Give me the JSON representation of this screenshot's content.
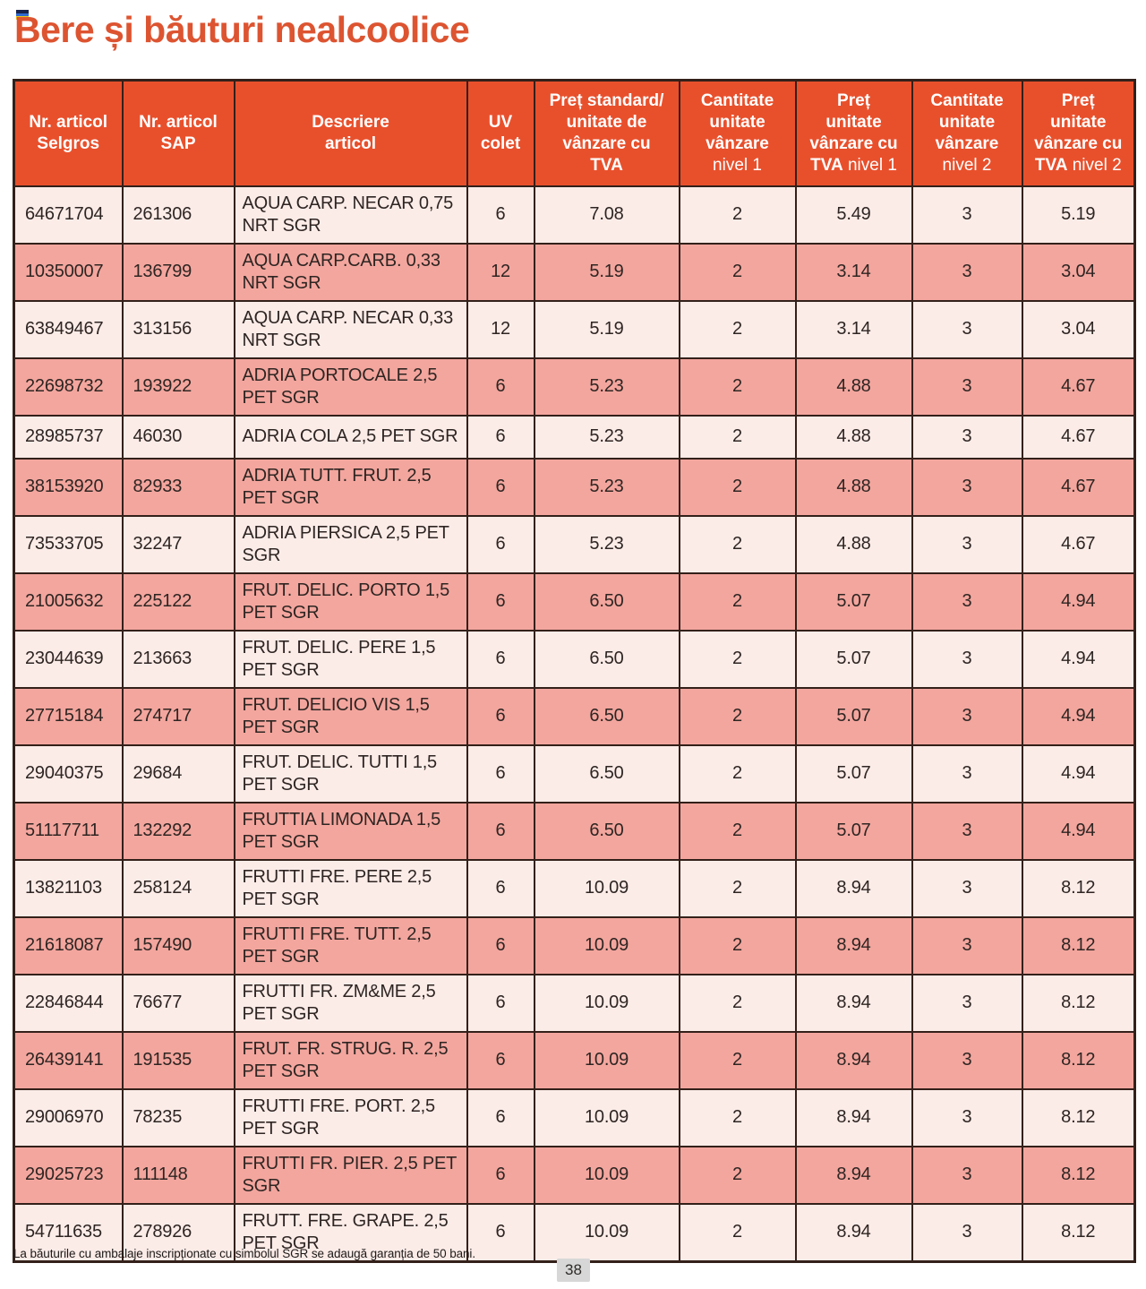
{
  "page": {
    "title": "Bere și băuturi nealcoolice",
    "page_number": "38",
    "footer_note": "La băuturile cu ambalaje inscripționate cu simbolul SGR se adaugă garanția de 50 bani."
  },
  "colors": {
    "accent_orange": "#e8502c",
    "title_orange": "#dd5431",
    "row_light": "#fbece8",
    "row_dark": "#f3a69e",
    "border": "#33201a",
    "page_badge_bg": "#d7d7d7"
  },
  "icons": {
    "flag_icon": "small tricolor flag (navy/blue/yellow stripes)"
  },
  "table": {
    "headers": [
      {
        "bold": "Nr. articol\nSelgros",
        "regular": ""
      },
      {
        "bold": "Nr. articol\nSAP",
        "regular": ""
      },
      {
        "bold": "Descriere\narticol",
        "regular": ""
      },
      {
        "bold": "UV\ncolet",
        "regular": ""
      },
      {
        "bold": "Preț standard/\nunitate de\nvânzare cu\nTVA",
        "regular": ""
      },
      {
        "bold": "Cantitate\nunitate\nvânzare",
        "regular": "\nnivel 1"
      },
      {
        "bold": "Preț\nunitate\nvânzare cu\nTVA",
        "regular": " nivel 1"
      },
      {
        "bold": "Cantitate\nunitate\nvânzare",
        "regular": "\nnivel 2"
      },
      {
        "bold": "Preț\nunitate\nvânzare cu\nTVA",
        "regular": " nivel 2"
      }
    ],
    "rows": [
      [
        "64671704",
        "261306",
        "AQUA CARP. NECAR 0,75 NRT SGR",
        "6",
        "7.08",
        "2",
        "5.49",
        "3",
        "5.19"
      ],
      [
        "10350007",
        "136799",
        "AQUA CARP.CARB. 0,33 NRT SGR",
        "12",
        "5.19",
        "2",
        "3.14",
        "3",
        "3.04"
      ],
      [
        "63849467",
        "313156",
        "AQUA CARP. NECAR 0,33 NRT SGR",
        "12",
        "5.19",
        "2",
        "3.14",
        "3",
        "3.04"
      ],
      [
        "22698732",
        "193922",
        "ADRIA PORTOCALE 2,5 PET SGR",
        "6",
        "5.23",
        "2",
        "4.88",
        "3",
        "4.67"
      ],
      [
        "28985737",
        "46030",
        "ADRIA COLA 2,5 PET SGR",
        "6",
        "5.23",
        "2",
        "4.88",
        "3",
        "4.67"
      ],
      [
        "38153920",
        "82933",
        "ADRIA TUTT. FRUT. 2,5 PET SGR",
        "6",
        "5.23",
        "2",
        "4.88",
        "3",
        "4.67"
      ],
      [
        "73533705",
        "32247",
        "ADRIA PIERSICA 2,5 PET SGR",
        "6",
        "5.23",
        "2",
        "4.88",
        "3",
        "4.67"
      ],
      [
        "21005632",
        "225122",
        "FRUT. DELIC. PORTO 1,5 PET SGR",
        "6",
        "6.50",
        "2",
        "5.07",
        "3",
        "4.94"
      ],
      [
        "23044639",
        "213663",
        "FRUT. DELIC. PERE 1,5 PET SGR",
        "6",
        "6.50",
        "2",
        "5.07",
        "3",
        "4.94"
      ],
      [
        "27715184",
        "274717",
        "FRUT. DELICIO VIS 1,5 PET SGR",
        "6",
        "6.50",
        "2",
        "5.07",
        "3",
        "4.94"
      ],
      [
        "29040375",
        "29684",
        "FRUT. DELIC. TUTTI 1,5 PET SGR",
        "6",
        "6.50",
        "2",
        "5.07",
        "3",
        "4.94"
      ],
      [
        "51117711",
        "132292",
        "FRUTTIA LIMONADA 1,5 PET SGR",
        "6",
        "6.50",
        "2",
        "5.07",
        "3",
        "4.94"
      ],
      [
        "13821103",
        "258124",
        "FRUTTI FRE. PERE 2,5 PET SGR",
        "6",
        "10.09",
        "2",
        "8.94",
        "3",
        "8.12"
      ],
      [
        "21618087",
        "157490",
        "FRUTTI FRE. TUTT. 2,5 PET SGR",
        "6",
        "10.09",
        "2",
        "8.94",
        "3",
        "8.12"
      ],
      [
        "22846844",
        "76677",
        "FRUTTI FR. ZM&ME 2,5 PET SGR",
        "6",
        "10.09",
        "2",
        "8.94",
        "3",
        "8.12"
      ],
      [
        "26439141",
        "191535",
        "FRUT. FR. STRUG. R. 2,5 PET SGR",
        "6",
        "10.09",
        "2",
        "8.94",
        "3",
        "8.12"
      ],
      [
        "29006970",
        "78235",
        "FRUTTI FRE. PORT. 2,5 PET SGR",
        "6",
        "10.09",
        "2",
        "8.94",
        "3",
        "8.12"
      ],
      [
        "29025723",
        "111148",
        "FRUTTI FR. PIER. 2,5 PET SGR",
        "6",
        "10.09",
        "2",
        "8.94",
        "3",
        "8.12"
      ],
      [
        "54711635",
        "278926",
        "FRUTT. FRE. GRAPE. 2,5 PET SGR",
        "6",
        "10.09",
        "2",
        "8.94",
        "3",
        "8.12"
      ]
    ],
    "column_semantics": [
      "nr-articol-selgros",
      "nr-articol-sap",
      "descriere-articol",
      "uv-colet",
      "pret-standard-tva",
      "cantitate-nivel-1",
      "pret-tva-nivel-1",
      "cantitate-nivel-2",
      "pret-tva-nivel-2"
    ]
  }
}
